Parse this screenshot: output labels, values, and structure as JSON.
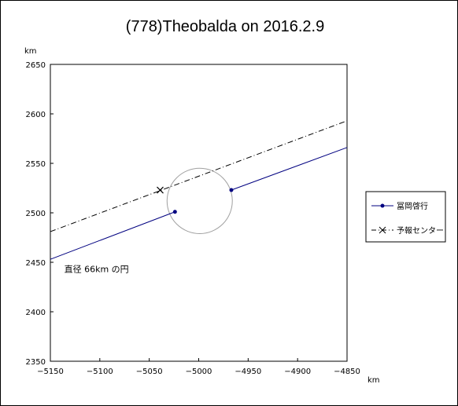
{
  "chart_data": {
    "type": "line",
    "title": "(778)Theobalda on 2016.2.9",
    "x_unit": "km",
    "y_unit": "km",
    "xlim": [
      -5150,
      -4850
    ],
    "ylim": [
      2350,
      2650
    ],
    "x_ticks": [
      -5150,
      -5100,
      -5050,
      -5000,
      -4950,
      -4900,
      -4850
    ],
    "y_ticks": [
      2350,
      2400,
      2450,
      2500,
      2550,
      2600,
      2650
    ],
    "x_tick_labels": [
      "−5150",
      "−5100",
      "−5050",
      "−5000",
      "−4950",
      "−4900",
      "−4850"
    ],
    "y_tick_labels": [
      "2350",
      "2400",
      "2450",
      "2500",
      "2550",
      "2600",
      "2650"
    ],
    "grid": false,
    "legend_position": "right",
    "series": [
      {
        "name": "冨岡啓行",
        "color": "#000080",
        "style": "solid",
        "marker": "dot",
        "segments": [
          {
            "points": [
              [
                -5150,
                2453
              ],
              [
                -5024,
                2501
              ]
            ],
            "marker_at": [
              -5024,
              2501
            ]
          },
          {
            "points": [
              [
                -4967,
                2523
              ],
              [
                -4850,
                2566
              ]
            ],
            "marker_at": [
              -4967,
              2523
            ]
          }
        ]
      },
      {
        "name": "予報センター",
        "color": "#000000",
        "style": "dashdot",
        "marker": "x",
        "segments": [
          {
            "points": [
              [
                -5150,
                2481
              ],
              [
                -4850,
                2593
              ]
            ],
            "marker_at": [
              -5039,
              2523
            ]
          }
        ]
      }
    ],
    "circle": {
      "center": [
        -4999,
        2512
      ],
      "diameter": 66,
      "color": "#a0a0a0"
    },
    "annotations": [
      {
        "text": "直径 66km の円",
        "at": [
          -5136,
          2440
        ]
      }
    ]
  }
}
